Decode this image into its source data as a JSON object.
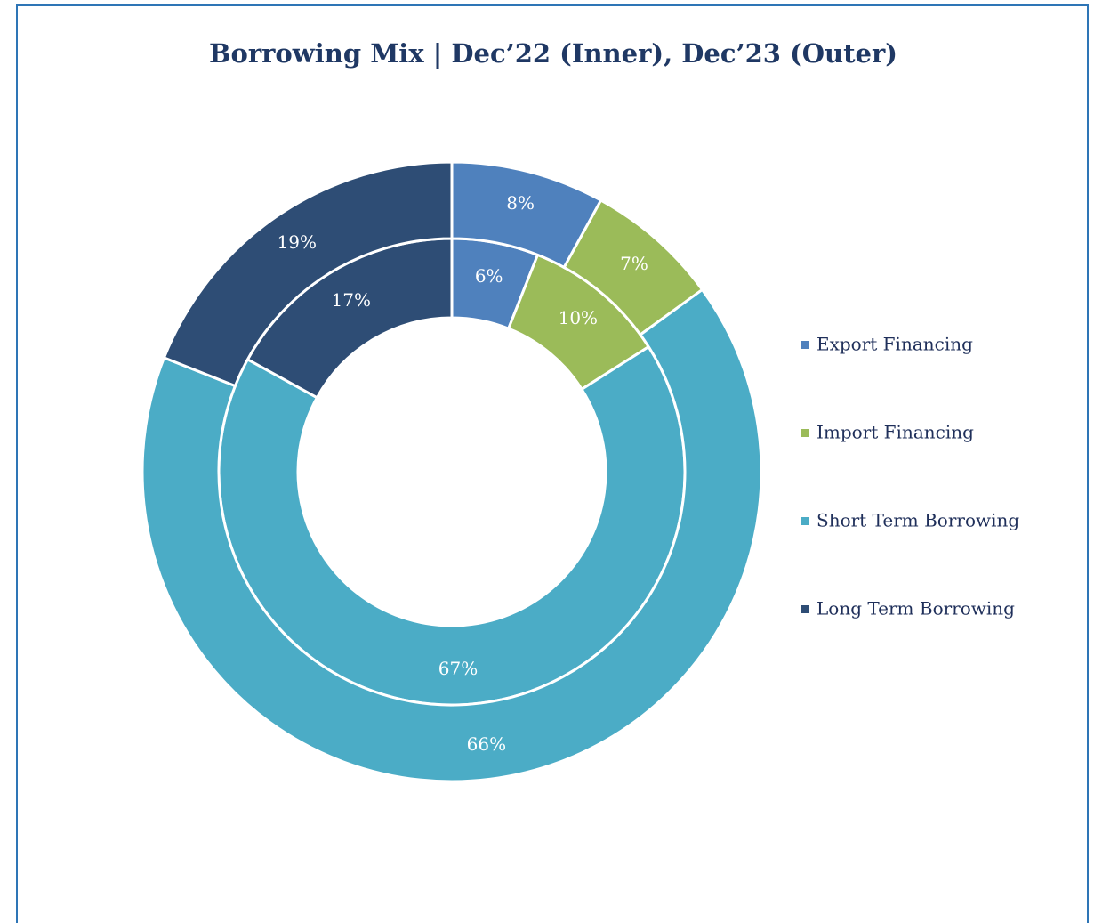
{
  "chart_data": {
    "type": "donut",
    "title": "Borrowing Mix | Dec’22 (Inner), Dec’23 (Outer)",
    "categories": [
      "Export Financing",
      "Import Financing",
      "Short Term Borrowing",
      "Long Term Borrowing"
    ],
    "colors": [
      "#4f81bd",
      "#9bbb59",
      "#4bacc6",
      "#2e4d75"
    ],
    "series": [
      {
        "values": [
          6,
          10,
          67,
          17
        ],
        "value_labels": [
          "6%",
          "10%",
          "67%",
          "17%"
        ]
      },
      {
        "values": [
          8,
          7,
          66,
          19
        ],
        "value_labels": [
          "8%",
          "7%",
          "66%",
          "19%"
        ]
      }
    ],
    "legend": "right"
  }
}
